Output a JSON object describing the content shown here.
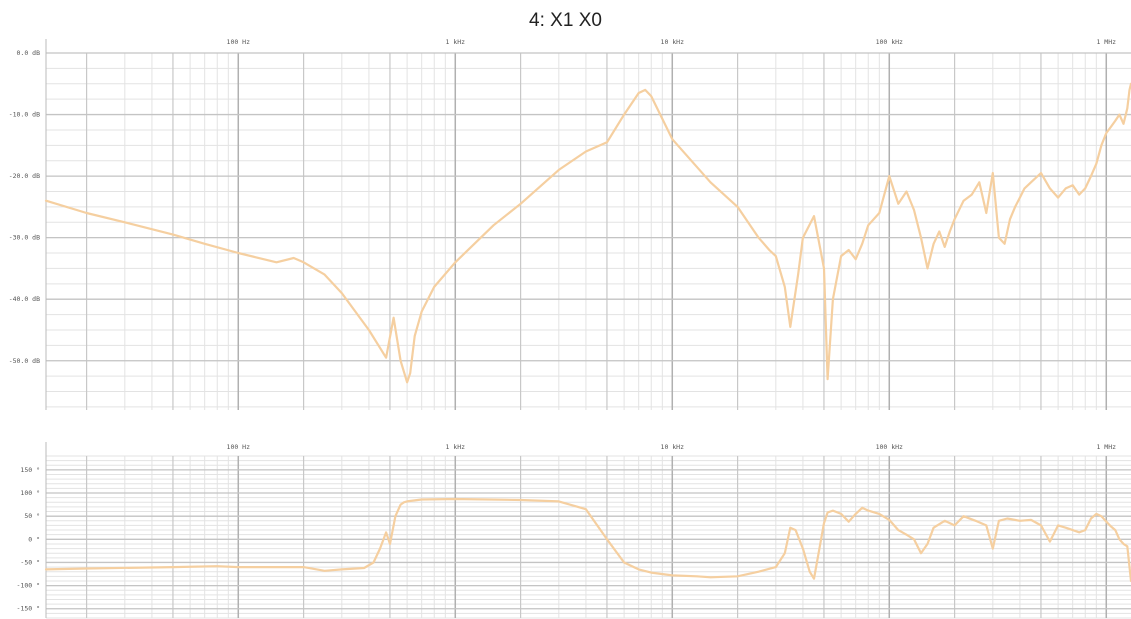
{
  "title": "4: X1 X0",
  "colors": {
    "trace": "#f5cfa0",
    "grid_major": "#c4c4c4",
    "grid_minor": "#e3e3e3"
  },
  "chart_data": [
    {
      "type": "line",
      "name": "magnitude",
      "xscale": "log",
      "xlim": [
        13,
        1300000
      ],
      "ylim": [
        -58,
        0
      ],
      "freq_ticks": [
        {
          "value": 100,
          "label": "100 Hz"
        },
        {
          "value": 1000,
          "label": "1 kHz"
        },
        {
          "value": 10000,
          "label": "10 kHz"
        },
        {
          "value": 100000,
          "label": "100 kHz"
        },
        {
          "value": 1000000,
          "label": "1 MHz"
        }
      ],
      "y_ticks": [
        {
          "value": 0,
          "label": "0.0 dB"
        },
        {
          "value": -10,
          "label": "-10.0 dB"
        },
        {
          "value": -20,
          "label": "-20.0 dB"
        },
        {
          "value": -30,
          "label": "-30.0 dB"
        },
        {
          "value": -40,
          "label": "-40.0 dB"
        },
        {
          "value": -50,
          "label": "-50.0 dB"
        }
      ],
      "x": [
        13,
        20,
        30,
        50,
        70,
        100,
        150,
        180,
        200,
        250,
        300,
        400,
        480,
        520,
        560,
        600,
        620,
        650,
        700,
        800,
        1000,
        1500,
        2000,
        3000,
        4000,
        5000,
        6000,
        7000,
        7500,
        8000,
        10000,
        15000,
        20000,
        25000,
        28000,
        30000,
        33000,
        35000,
        38000,
        40000,
        45000,
        50000,
        52000,
        55000,
        60000,
        65000,
        70000,
        75000,
        80000,
        90000,
        100000,
        110000,
        120000,
        130000,
        140000,
        150000,
        160000,
        170000,
        180000,
        190000,
        200000,
        220000,
        240000,
        260000,
        280000,
        300000,
        320000,
        340000,
        360000,
        380000,
        400000,
        420000,
        450000,
        500000,
        550000,
        600000,
        650000,
        700000,
        750000,
        800000,
        850000,
        900000,
        950000,
        1000000,
        1050000,
        1100000,
        1150000,
        1200000,
        1250000,
        1280000,
        1300000
      ],
      "y": [
        -24,
        -26,
        -27.5,
        -29.5,
        -31,
        -32.5,
        -34,
        -33.3,
        -34,
        -36,
        -39,
        -45,
        -49.5,
        -43,
        -50,
        -53.5,
        -52,
        -46,
        -42,
        -38,
        -34,
        -28,
        -24.5,
        -19,
        -16,
        -14.5,
        -10,
        -6.5,
        -6,
        -7,
        -14,
        -21,
        -25,
        -30,
        -32,
        -33,
        -38,
        -44.5,
        -36,
        -30,
        -26.5,
        -35,
        -53,
        -40,
        -33,
        -32,
        -33.5,
        -31,
        -28,
        -26,
        -20,
        -24.5,
        -22.5,
        -25.5,
        -30,
        -35,
        -31,
        -29,
        -31.5,
        -29,
        -27,
        -24,
        -23,
        -21,
        -26,
        -19.5,
        -30,
        -31,
        -27,
        -25,
        -23.5,
        -22,
        -21,
        -19.5,
        -22,
        -23.5,
        -22,
        -21.5,
        -23,
        -22,
        -20,
        -18,
        -15,
        -13,
        -12,
        -11,
        -10,
        -11.5,
        -9,
        -6,
        -5
      ]
    },
    {
      "type": "line",
      "name": "phase",
      "xscale": "log",
      "xlim": [
        13,
        1300000
      ],
      "ylim": [
        -170,
        180
      ],
      "freq_ticks": [
        {
          "value": 100,
          "label": "100 Hz"
        },
        {
          "value": 1000,
          "label": "1 kHz"
        },
        {
          "value": 10000,
          "label": "10 kHz"
        },
        {
          "value": 100000,
          "label": "100 kHz"
        },
        {
          "value": 1000000,
          "label": "1 MHz"
        }
      ],
      "y_ticks": [
        {
          "value": 150,
          "label": "150 °"
        },
        {
          "value": 100,
          "label": "100 °"
        },
        {
          "value": 50,
          "label": "50 °"
        },
        {
          "value": 0,
          "label": "0 °"
        },
        {
          "value": -50,
          "label": "-50 °"
        },
        {
          "value": -100,
          "label": "-100 °"
        },
        {
          "value": -150,
          "label": "-150 °"
        }
      ],
      "x": [
        13,
        20,
        50,
        80,
        100,
        150,
        200,
        250,
        300,
        380,
        420,
        450,
        480,
        500,
        530,
        560,
        580,
        600,
        650,
        700,
        1000,
        2000,
        3000,
        4000,
        5000,
        6000,
        7000,
        8000,
        10000,
        13000,
        15000,
        20000,
        25000,
        30000,
        33000,
        35000,
        37000,
        40000,
        43000,
        45000,
        50000,
        52000,
        55000,
        60000,
        65000,
        70000,
        75000,
        80000,
        90000,
        100000,
        110000,
        120000,
        130000,
        140000,
        150000,
        160000,
        180000,
        200000,
        220000,
        250000,
        280000,
        300000,
        320000,
        350000,
        400000,
        450000,
        500000,
        550000,
        600000,
        650000,
        700000,
        750000,
        800000,
        850000,
        900000,
        950000,
        1000000,
        1050000,
        1100000,
        1150000,
        1200000,
        1250000,
        1300000
      ],
      "y": [
        -65,
        -63,
        -60,
        -58,
        -60,
        -60,
        -60,
        -68,
        -65,
        -62,
        -50,
        -20,
        15,
        -10,
        50,
        75,
        80,
        82,
        84,
        86,
        87,
        85,
        82,
        65,
        0,
        -50,
        -65,
        -72,
        -78,
        -80,
        -82,
        -80,
        -70,
        -60,
        -30,
        25,
        20,
        -20,
        -70,
        -85,
        35,
        58,
        62,
        55,
        38,
        55,
        68,
        62,
        55,
        42,
        20,
        10,
        0,
        -30,
        -10,
        25,
        40,
        30,
        50,
        40,
        30,
        -20,
        40,
        45,
        40,
        42,
        30,
        -5,
        30,
        25,
        20,
        15,
        20,
        45,
        55,
        50,
        38,
        28,
        20,
        0,
        -10,
        -15,
        -90
      ]
    }
  ]
}
